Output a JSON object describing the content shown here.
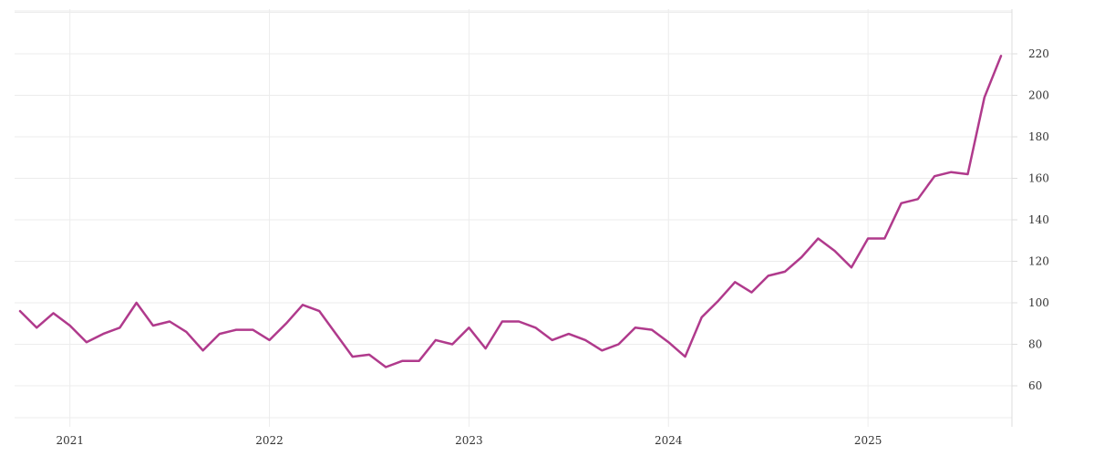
{
  "chart_data": {
    "type": "line",
    "title": "",
    "xlabel": "",
    "ylabel": "",
    "x_tick_labels": [
      "2021",
      "2022",
      "2023",
      "2024",
      "2025"
    ],
    "y_ticks": [
      60,
      80,
      100,
      120,
      140,
      160,
      180,
      200,
      220
    ],
    "xlim": [
      "2020-10",
      "2025-10"
    ],
    "ylim": [
      43,
      232
    ],
    "grid": true,
    "legend": "none",
    "series": [
      {
        "color": "#b03a8c",
        "points": [
          [
            "2020-10",
            96
          ],
          [
            "2020-11",
            88
          ],
          [
            "2020-12",
            95
          ],
          [
            "2021-01",
            89
          ],
          [
            "2021-02",
            81
          ],
          [
            "2021-03",
            85
          ],
          [
            "2021-04",
            88
          ],
          [
            "2021-05",
            100
          ],
          [
            "2021-06",
            89
          ],
          [
            "2021-07",
            91
          ],
          [
            "2021-08",
            86
          ],
          [
            "2021-09",
            77
          ],
          [
            "2021-10",
            85
          ],
          [
            "2021-11",
            87
          ],
          [
            "2021-12",
            87
          ],
          [
            "2022-01",
            82
          ],
          [
            "2022-02",
            90
          ],
          [
            "2022-03",
            99
          ],
          [
            "2022-04",
            96
          ],
          [
            "2022-05",
            85
          ],
          [
            "2022-06",
            74
          ],
          [
            "2022-07",
            75
          ],
          [
            "2022-08",
            69
          ],
          [
            "2022-09",
            72
          ],
          [
            "2022-10",
            72
          ],
          [
            "2022-11",
            82
          ],
          [
            "2022-12",
            80
          ],
          [
            "2023-01",
            88
          ],
          [
            "2023-02",
            78
          ],
          [
            "2023-03",
            91
          ],
          [
            "2023-04",
            91
          ],
          [
            "2023-05",
            88
          ],
          [
            "2023-06",
            82
          ],
          [
            "2023-07",
            85
          ],
          [
            "2023-08",
            82
          ],
          [
            "2023-09",
            77
          ],
          [
            "2023-10",
            80
          ],
          [
            "2023-11",
            88
          ],
          [
            "2023-12",
            87
          ],
          [
            "2024-01",
            81
          ],
          [
            "2024-02",
            74
          ],
          [
            "2024-03",
            93
          ],
          [
            "2024-04",
            101
          ],
          [
            "2024-05",
            110
          ],
          [
            "2024-06",
            105
          ],
          [
            "2024-07",
            113
          ],
          [
            "2024-08",
            115
          ],
          [
            "2024-09",
            122
          ],
          [
            "2024-10",
            131
          ],
          [
            "2024-11",
            125
          ],
          [
            "2024-12",
            117
          ],
          [
            "2025-01",
            131
          ],
          [
            "2025-02",
            131
          ],
          [
            "2025-03",
            148
          ],
          [
            "2025-04",
            150
          ],
          [
            "2025-05",
            161
          ],
          [
            "2025-06",
            163
          ],
          [
            "2025-07",
            162
          ],
          [
            "2025-08",
            199
          ],
          [
            "2025-09",
            219
          ]
        ]
      }
    ]
  }
}
